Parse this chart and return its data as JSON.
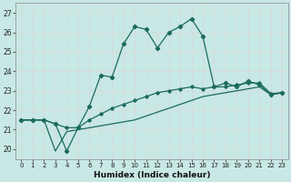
{
  "xlabel": "Humidex (Indice chaleur)",
  "xlim": [
    -0.5,
    23.5
  ],
  "ylim": [
    19.5,
    27.5
  ],
  "yticks": [
    20,
    21,
    22,
    23,
    24,
    25,
    26,
    27
  ],
  "xticks": [
    0,
    1,
    2,
    3,
    4,
    5,
    6,
    7,
    8,
    9,
    10,
    11,
    12,
    13,
    14,
    15,
    16,
    17,
    18,
    19,
    20,
    21,
    22,
    23
  ],
  "bg_color": "#c8e8e5",
  "line_color": "#1a6b5e",
  "grid_color": "#e8e8e8",
  "line1_x": [
    0,
    1,
    2,
    3,
    4,
    5,
    6,
    7,
    8,
    9,
    10,
    11,
    12,
    13,
    14,
    15,
    16,
    17,
    18,
    19,
    20,
    21,
    22,
    23
  ],
  "line1_y": [
    21.5,
    21.5,
    21.5,
    21.3,
    19.9,
    21.1,
    22.2,
    23.8,
    23.7,
    25.4,
    26.3,
    26.15,
    25.2,
    26.0,
    26.3,
    26.7,
    25.8,
    23.2,
    23.4,
    23.2,
    23.5,
    23.3,
    22.8,
    22.9
  ],
  "line2_x": [
    0,
    1,
    2,
    3,
    4,
    5,
    6,
    7,
    8,
    9,
    10,
    11,
    12,
    13,
    14,
    15,
    16,
    17,
    18,
    19,
    20,
    21,
    22,
    23
  ],
  "line2_y": [
    21.5,
    21.5,
    21.5,
    21.3,
    21.1,
    21.1,
    21.5,
    21.8,
    22.1,
    22.3,
    22.5,
    22.7,
    22.9,
    23.0,
    23.1,
    23.2,
    23.1,
    23.2,
    23.2,
    23.3,
    23.4,
    23.4,
    22.85,
    22.9
  ],
  "line3_x": [
    0,
    1,
    2,
    3,
    4,
    5,
    6,
    7,
    8,
    9,
    10,
    11,
    12,
    13,
    14,
    15,
    16,
    17,
    18,
    19,
    20,
    21,
    22,
    23
  ],
  "line3_y": [
    21.5,
    21.5,
    21.5,
    19.9,
    20.9,
    21.0,
    21.1,
    21.2,
    21.3,
    21.4,
    21.5,
    21.7,
    21.9,
    22.1,
    22.3,
    22.5,
    22.7,
    22.8,
    22.9,
    23.0,
    23.1,
    23.2,
    22.8,
    22.9
  ]
}
